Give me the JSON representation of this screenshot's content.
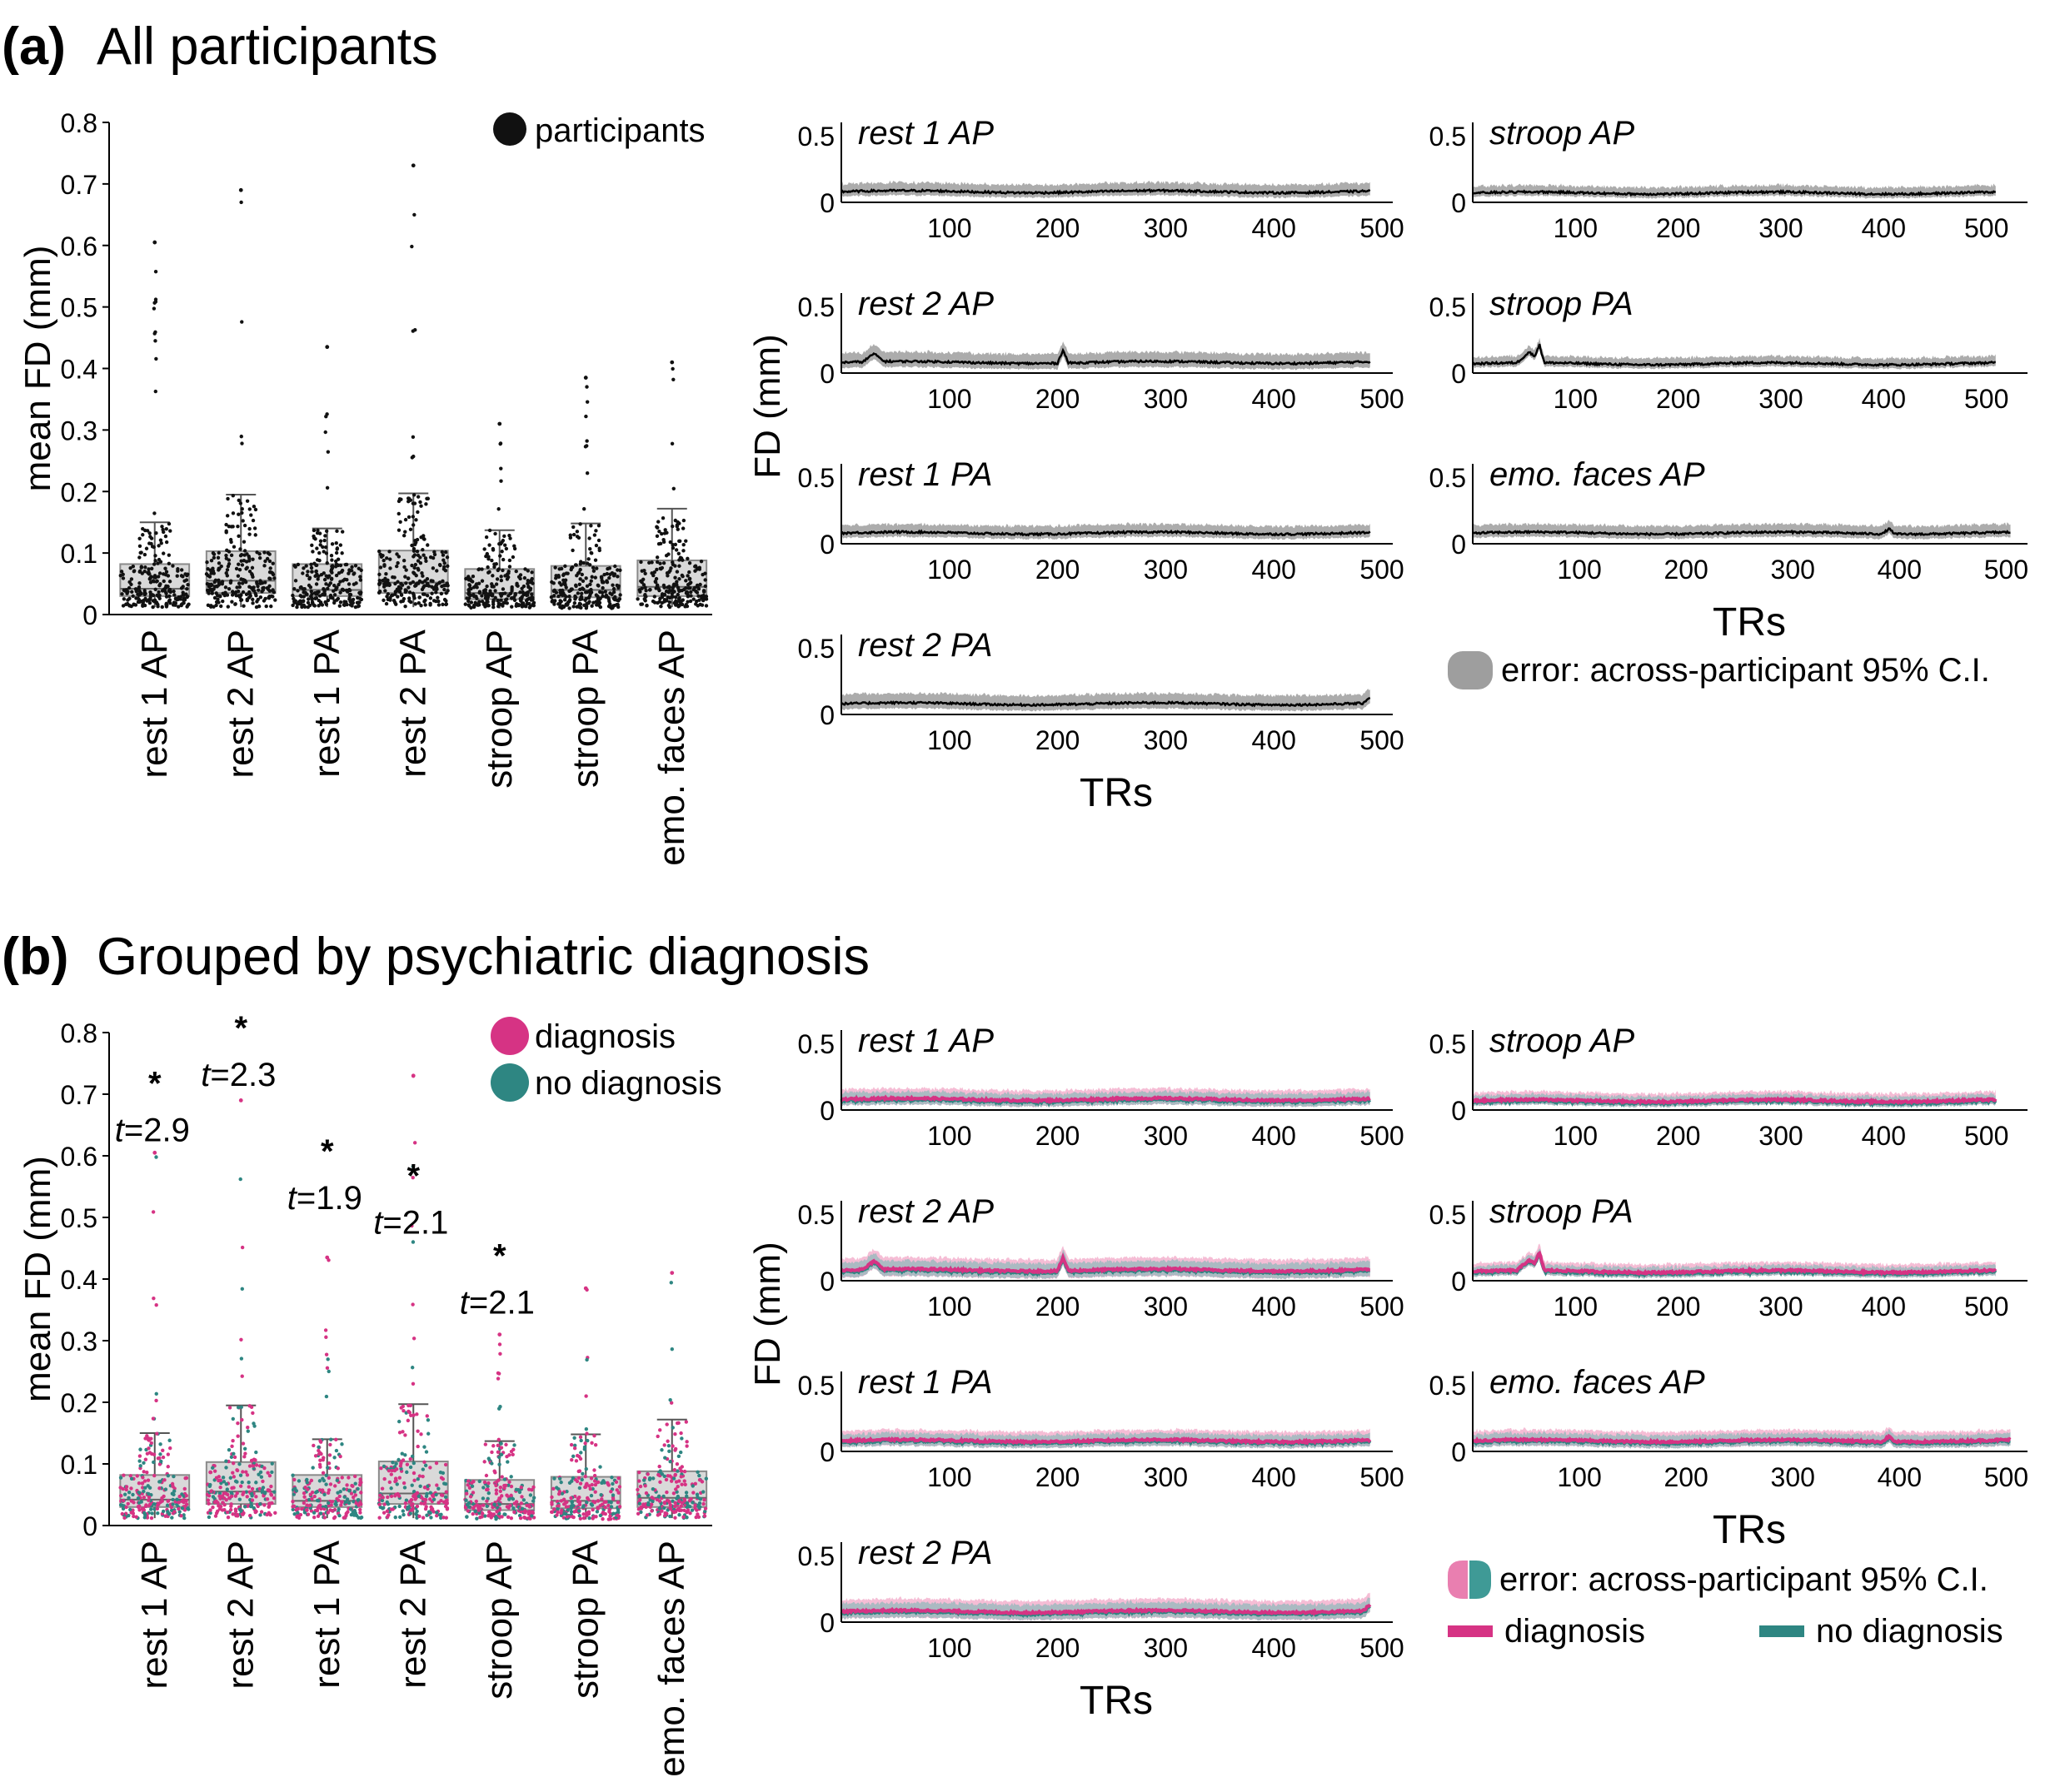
{
  "panels": {
    "a": {
      "letter": "(a)",
      "title": "All participants"
    },
    "b": {
      "letter": "(b)",
      "title": "Grouped by psychiatric diagnosis"
    }
  },
  "colors": {
    "points_all": "#111111",
    "diagnosis": "#d63384",
    "no_diagnosis": "#2e8682",
    "box_fill": "#d9d9d9",
    "ci_gray": "#9e9e9e",
    "ci_pink": "#f2a7c7",
    "ci_teal": "#7ab8b5"
  },
  "chart_data": [
    {
      "id": "a-box",
      "type": "box",
      "ylabel": "mean FD (mm)",
      "ylim": [
        0,
        0.8
      ],
      "yticks": [
        "0",
        "0.1",
        "0.2",
        "0.3",
        "0.4",
        "0.5",
        "0.6",
        "0.7",
        "0.8"
      ],
      "categories": [
        "rest 1 AP",
        "rest 2 AP",
        "rest 1 PA",
        "rest 2 PA",
        "stroop AP",
        "stroop PA",
        "emo. faces AP"
      ],
      "legend": [
        {
          "label": "participants",
          "color": "#111111"
        }
      ],
      "boxes": [
        {
          "q1": 0.03,
          "median": 0.042,
          "q3": 0.082,
          "whisker_low": 0.012,
          "whisker_high": 0.15,
          "max": 0.605
        },
        {
          "q1": 0.035,
          "median": 0.055,
          "q3": 0.103,
          "whisker_low": 0.012,
          "whisker_high": 0.195,
          "max": 0.69
        },
        {
          "q1": 0.03,
          "median": 0.04,
          "q3": 0.082,
          "whisker_low": 0.012,
          "whisker_high": 0.14,
          "max": 0.435
        },
        {
          "q1": 0.035,
          "median": 0.052,
          "q3": 0.104,
          "whisker_low": 0.012,
          "whisker_high": 0.197,
          "max": 0.73
        },
        {
          "q1": 0.025,
          "median": 0.035,
          "q3": 0.074,
          "whisker_low": 0.01,
          "whisker_high": 0.137,
          "max": 0.31
        },
        {
          "q1": 0.028,
          "median": 0.04,
          "q3": 0.079,
          "whisker_low": 0.01,
          "whisker_high": 0.148,
          "max": 0.385
        },
        {
          "q1": 0.03,
          "median": 0.045,
          "q3": 0.088,
          "whisker_low": 0.012,
          "whisker_high": 0.172,
          "max": 0.41
        }
      ]
    },
    {
      "id": "a-timeseries",
      "type": "line",
      "ylabel": "FD (mm)",
      "xlabel_left": "TRs",
      "xlabel_right": "TRs",
      "legend": [
        {
          "label": "error: across-participant 95% C.I."
        }
      ],
      "subplots": [
        {
          "title": "rest 1 AP",
          "xlim": [
            0,
            510
          ],
          "ylim": [
            0,
            0.55
          ],
          "mean": 0.08,
          "ci": 0.05
        },
        {
          "title": "rest 2 AP",
          "xlim": [
            0,
            510
          ],
          "ylim": [
            0,
            0.55
          ],
          "mean": 0.08,
          "ci": 0.06
        },
        {
          "title": "rest 1 PA",
          "xlim": [
            0,
            510
          ],
          "ylim": [
            0,
            0.55
          ],
          "mean": 0.08,
          "ci": 0.05
        },
        {
          "title": "rest 2 PA",
          "xlim": [
            0,
            510
          ],
          "ylim": [
            0,
            0.55
          ],
          "mean": 0.08,
          "ci": 0.06
        },
        {
          "title": "stroop AP",
          "xlim": [
            0,
            540
          ],
          "ylim": [
            0,
            0.55
          ],
          "mean": 0.07,
          "ci": 0.04
        },
        {
          "title": "stroop PA",
          "xlim": [
            0,
            540
          ],
          "ylim": [
            0,
            0.55
          ],
          "mean": 0.07,
          "ci": 0.04
        },
        {
          "title": "emo. faces AP",
          "xlim": [
            0,
            520
          ],
          "ylim": [
            0,
            0.55
          ],
          "mean": 0.08,
          "ci": 0.05
        }
      ]
    },
    {
      "id": "b-box",
      "type": "box",
      "ylabel": "mean FD (mm)",
      "ylim": [
        0,
        0.8
      ],
      "yticks": [
        "0",
        "0.1",
        "0.2",
        "0.3",
        "0.4",
        "0.5",
        "0.6",
        "0.7",
        "0.8"
      ],
      "categories": [
        "rest 1 AP",
        "rest 2 AP",
        "rest 1 PA",
        "rest 2 PA",
        "stroop AP",
        "stroop PA",
        "emo. faces AP"
      ],
      "legend": [
        {
          "label": "diagnosis",
          "color": "#d63384"
        },
        {
          "label": "no diagnosis",
          "color": "#2e8682"
        }
      ],
      "annotations": [
        {
          "category": "rest 1 AP",
          "star": "*",
          "t_prefix": "t",
          "t_value": "=2.9",
          "y": 0.64
        },
        {
          "category": "rest 2 AP",
          "star": "*",
          "t_prefix": "t",
          "t_value": "=2.3",
          "y": 0.73
        },
        {
          "category": "rest 1 PA",
          "star": "*",
          "t_prefix": "t",
          "t_value": "=1.9",
          "y": 0.53
        },
        {
          "category": "rest 2 PA",
          "star": "*",
          "t_prefix": "t",
          "t_value": "=2.1",
          "y": 0.49
        },
        {
          "category": "stroop AP",
          "star": "*",
          "t_prefix": "t",
          "t_value": "=2.1",
          "y": 0.36
        }
      ]
    },
    {
      "id": "b-timeseries",
      "type": "line",
      "ylabel": "FD (mm)",
      "xlabel_left": "TRs",
      "xlabel_right": "TRs",
      "legend": [
        {
          "label": "error: across-participant 95% C.I."
        },
        {
          "label": "diagnosis",
          "color": "#d63384"
        },
        {
          "label": "no diagnosis",
          "color": "#2e8682"
        }
      ]
    }
  ],
  "ticks": {
    "ts_y": [
      "0",
      "0.5"
    ],
    "ts_x": [
      "100",
      "200",
      "300",
      "400",
      "500"
    ]
  }
}
